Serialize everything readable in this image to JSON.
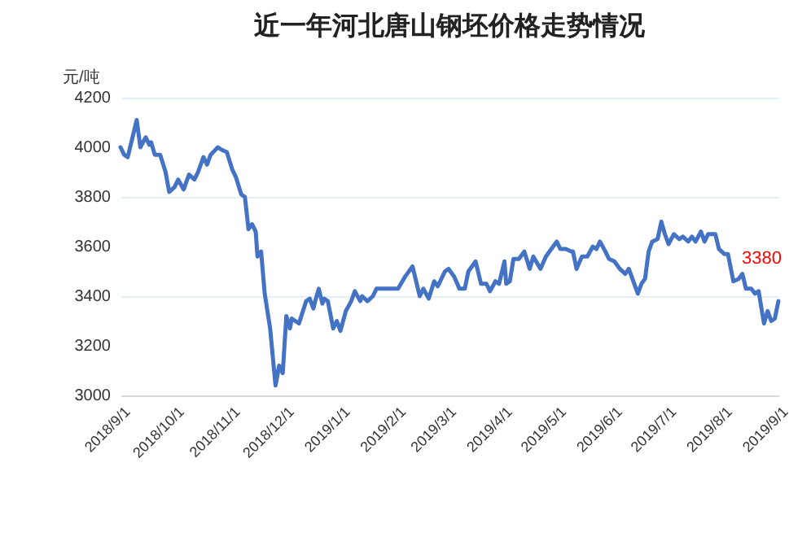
{
  "chart_data": {
    "type": "line",
    "title": "近一年河北唐山钢坯价格走势情况",
    "ylabel": "元/吨",
    "x": [
      "2018-09-01",
      "2018-09-03",
      "2018-09-05",
      "2018-09-07",
      "2018-09-10",
      "2018-09-12",
      "2018-09-15",
      "2018-09-17",
      "2018-09-18",
      "2018-09-20",
      "2018-09-23",
      "2018-09-26",
      "2018-09-28",
      "2018-10-01",
      "2018-10-03",
      "2018-10-06",
      "2018-10-09",
      "2018-10-12",
      "2018-10-14",
      "2018-10-17",
      "2018-10-19",
      "2018-10-21",
      "2018-10-25",
      "2018-10-27",
      "2018-10-30",
      "2018-11-02",
      "2018-11-04",
      "2018-11-07",
      "2018-11-09",
      "2018-11-11",
      "2018-11-13",
      "2018-11-15",
      "2018-11-16",
      "2018-11-18",
      "2018-11-20",
      "2018-11-23",
      "2018-11-26",
      "2018-11-28",
      "2018-11-30",
      "2018-12-02",
      "2018-12-04",
      "2018-12-05",
      "2018-12-09",
      "2018-12-13",
      "2018-12-15",
      "2018-12-17",
      "2018-12-18",
      "2018-12-20",
      "2018-12-22",
      "2018-12-23",
      "2018-12-25",
      "2018-12-28",
      "2018-12-30",
      "2019-01-01",
      "2019-01-04",
      "2019-01-07",
      "2019-01-09",
      "2019-01-12",
      "2019-01-13",
      "2019-01-16",
      "2019-01-19",
      "2019-01-21",
      "2019-01-23",
      "2019-02-02",
      "2019-02-06",
      "2019-02-10",
      "2019-02-13",
      "2019-02-14",
      "2019-02-16",
      "2019-02-19",
      "2019-02-22",
      "2019-02-24",
      "2019-02-28",
      "2019-03-02",
      "2019-03-05",
      "2019-03-08",
      "2019-03-11",
      "2019-03-13",
      "2019-03-17",
      "2019-03-20",
      "2019-03-23",
      "2019-03-25",
      "2019-03-28",
      "2019-03-30",
      "2019-04-02",
      "2019-04-03",
      "2019-04-05",
      "2019-04-07",
      "2019-04-10",
      "2019-04-13",
      "2019-04-16",
      "2019-04-18",
      "2019-04-22",
      "2019-04-25",
      "2019-04-29",
      "2019-05-01",
      "2019-05-03",
      "2019-05-06",
      "2019-05-09",
      "2019-05-10",
      "2019-05-12",
      "2019-05-15",
      "2019-05-18",
      "2019-05-21",
      "2019-05-23",
      "2019-05-25",
      "2019-05-28",
      "2019-05-30",
      "2019-06-02",
      "2019-06-05",
      "2019-06-08",
      "2019-06-10",
      "2019-06-12",
      "2019-06-15",
      "2019-06-17",
      "2019-06-19",
      "2019-06-21",
      "2019-06-23",
      "2019-06-26",
      "2019-06-28",
      "2019-06-30",
      "2019-07-02",
      "2019-07-05",
      "2019-07-08",
      "2019-07-10",
      "2019-07-13",
      "2019-07-15",
      "2019-07-17",
      "2019-07-20",
      "2019-07-22",
      "2019-07-24",
      "2019-07-28",
      "2019-07-30",
      "2019-08-02",
      "2019-08-04",
      "2019-08-07",
      "2019-08-10",
      "2019-08-12",
      "2019-08-14",
      "2019-08-17",
      "2019-08-19",
      "2019-08-21",
      "2019-08-24",
      "2019-08-26",
      "2019-08-28",
      "2019-08-30",
      "2019-09-01"
    ],
    "series": [
      {
        "color": "#4472c4",
        "values": [
          4000,
          3970,
          3960,
          4020,
          4110,
          4000,
          4040,
          4010,
          4020,
          3970,
          3970,
          3900,
          3820,
          3840,
          3870,
          3830,
          3890,
          3870,
          3900,
          3960,
          3930,
          3970,
          4000,
          3990,
          3980,
          3910,
          3880,
          3810,
          3800,
          3670,
          3690,
          3660,
          3560,
          3580,
          3410,
          3270,
          3040,
          3120,
          3090,
          3320,
          3270,
          3310,
          3290,
          3380,
          3390,
          3350,
          3380,
          3430,
          3370,
          3390,
          3380,
          3270,
          3300,
          3260,
          3340,
          3380,
          3420,
          3380,
          3400,
          3380,
          3400,
          3430,
          3430,
          3430,
          3480,
          3520,
          3430,
          3400,
          3430,
          3390,
          3460,
          3440,
          3500,
          3510,
          3480,
          3430,
          3430,
          3500,
          3540,
          3450,
          3450,
          3420,
          3460,
          3450,
          3540,
          3450,
          3460,
          3550,
          3550,
          3580,
          3510,
          3560,
          3510,
          3560,
          3600,
          3620,
          3590,
          3590,
          3580,
          3580,
          3510,
          3560,
          3560,
          3600,
          3590,
          3620,
          3580,
          3550,
          3540,
          3510,
          3490,
          3510,
          3470,
          3410,
          3450,
          3470,
          3580,
          3620,
          3630,
          3700,
          3650,
          3610,
          3650,
          3630,
          3640,
          3620,
          3640,
          3620,
          3660,
          3620,
          3650,
          3650,
          3590,
          3570,
          3570,
          3460,
          3470,
          3490,
          3430,
          3430,
          3410,
          3420,
          3290,
          3340,
          3300,
          3310,
          3380
        ]
      }
    ],
    "xlim": [
      "2018-09-01",
      "2019-09-01"
    ],
    "xticks": [
      {
        "value": "2018-09-01",
        "label": "2018/9/1"
      },
      {
        "value": "2018-10-01",
        "label": "2018/10/1"
      },
      {
        "value": "2018-11-01",
        "label": "2018/11/1"
      },
      {
        "value": "2018-12-01",
        "label": "2018/12/1"
      },
      {
        "value": "2019-01-01",
        "label": "2019/1/1"
      },
      {
        "value": "2019-02-01",
        "label": "2019/2/1"
      },
      {
        "value": "2019-03-01",
        "label": "2019/3/1"
      },
      {
        "value": "2019-04-01",
        "label": "2019/4/1"
      },
      {
        "value": "2019-05-01",
        "label": "2019/5/1"
      },
      {
        "value": "2019-06-01",
        "label": "2019/6/1"
      },
      {
        "value": "2019-07-01",
        "label": "2019/7/1"
      },
      {
        "value": "2019-08-01",
        "label": "2019/8/1"
      },
      {
        "value": "2019-09-01",
        "label": "2019/9/1"
      }
    ],
    "ylim": [
      3000,
      4200
    ],
    "yticks": [
      3000,
      3200,
      3400,
      3600,
      3800,
      4000,
      4200
    ],
    "grid": "y",
    "annotations": [
      {
        "text": "3380",
        "x": "2019-09-01",
        "y": 3380
      }
    ]
  }
}
